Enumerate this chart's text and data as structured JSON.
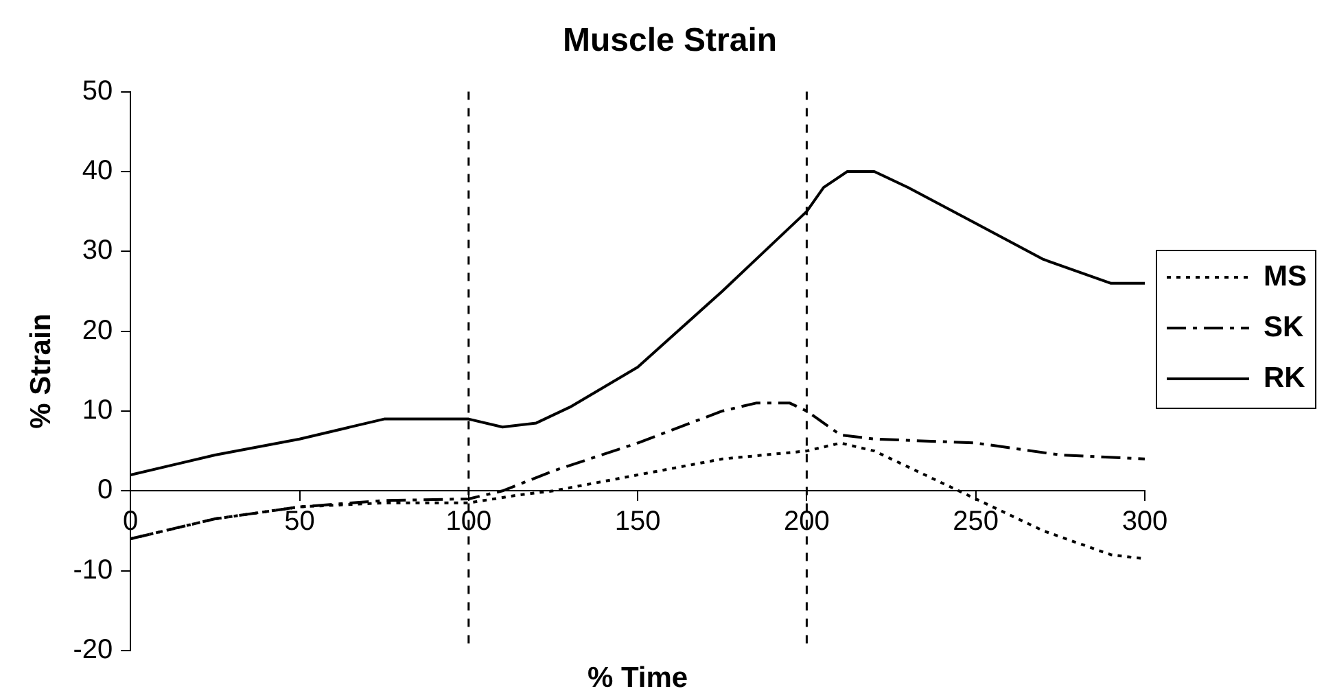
{
  "chart_data": {
    "type": "line",
    "title": "Muscle Strain",
    "xlabel": "% Time",
    "ylabel": "% Strain",
    "xlim": [
      0,
      300
    ],
    "xticks": [
      0,
      50,
      100,
      150,
      200,
      250,
      300
    ],
    "ylim": [
      -20,
      50
    ],
    "yticks": [
      -20,
      -10,
      0,
      10,
      20,
      30,
      40,
      50
    ],
    "grid": false,
    "legend": "right",
    "marker": "none",
    "ref_lines": [
      {
        "axis": "x",
        "value": 100,
        "color": "#000000",
        "line_style": "dashed"
      },
      {
        "axis": "x",
        "value": 200,
        "color": "#000000",
        "line_style": "dashed"
      }
    ],
    "series": [
      {
        "name": "MS",
        "color": "#000000",
        "line_style": "dotted",
        "x": [
          0,
          25,
          50,
          75,
          100,
          115,
          125,
          150,
          175,
          200,
          210,
          220,
          230,
          250,
          270,
          290,
          300
        ],
        "values": [
          -6,
          -3.5,
          -2,
          -1.5,
          -1.5,
          -0.5,
          0,
          2,
          4,
          5,
          6,
          5,
          3,
          -1,
          -5,
          -8,
          -8.5
        ]
      },
      {
        "name": "SK",
        "color": "#000000",
        "line_style": "dashdot",
        "x": [
          0,
          25,
          50,
          75,
          100,
          110,
          125,
          150,
          175,
          185,
          195,
          200,
          210,
          220,
          250,
          275,
          300
        ],
        "values": [
          -6,
          -3.5,
          -2,
          -1.2,
          -1,
          0,
          2.5,
          6,
          10,
          11,
          11,
          10,
          7,
          6.5,
          6,
          4.5,
          4
        ]
      },
      {
        "name": "RK",
        "color": "#000000",
        "line_style": "solid",
        "x": [
          0,
          25,
          50,
          75,
          100,
          110,
          120,
          130,
          150,
          175,
          190,
          200,
          205,
          212,
          220,
          230,
          250,
          270,
          290,
          300
        ],
        "values": [
          2,
          4.5,
          6.5,
          9,
          9,
          8,
          8.5,
          10.5,
          15.5,
          25,
          31,
          35,
          38,
          40,
          40,
          38,
          33.5,
          29,
          26,
          26
        ]
      }
    ]
  }
}
